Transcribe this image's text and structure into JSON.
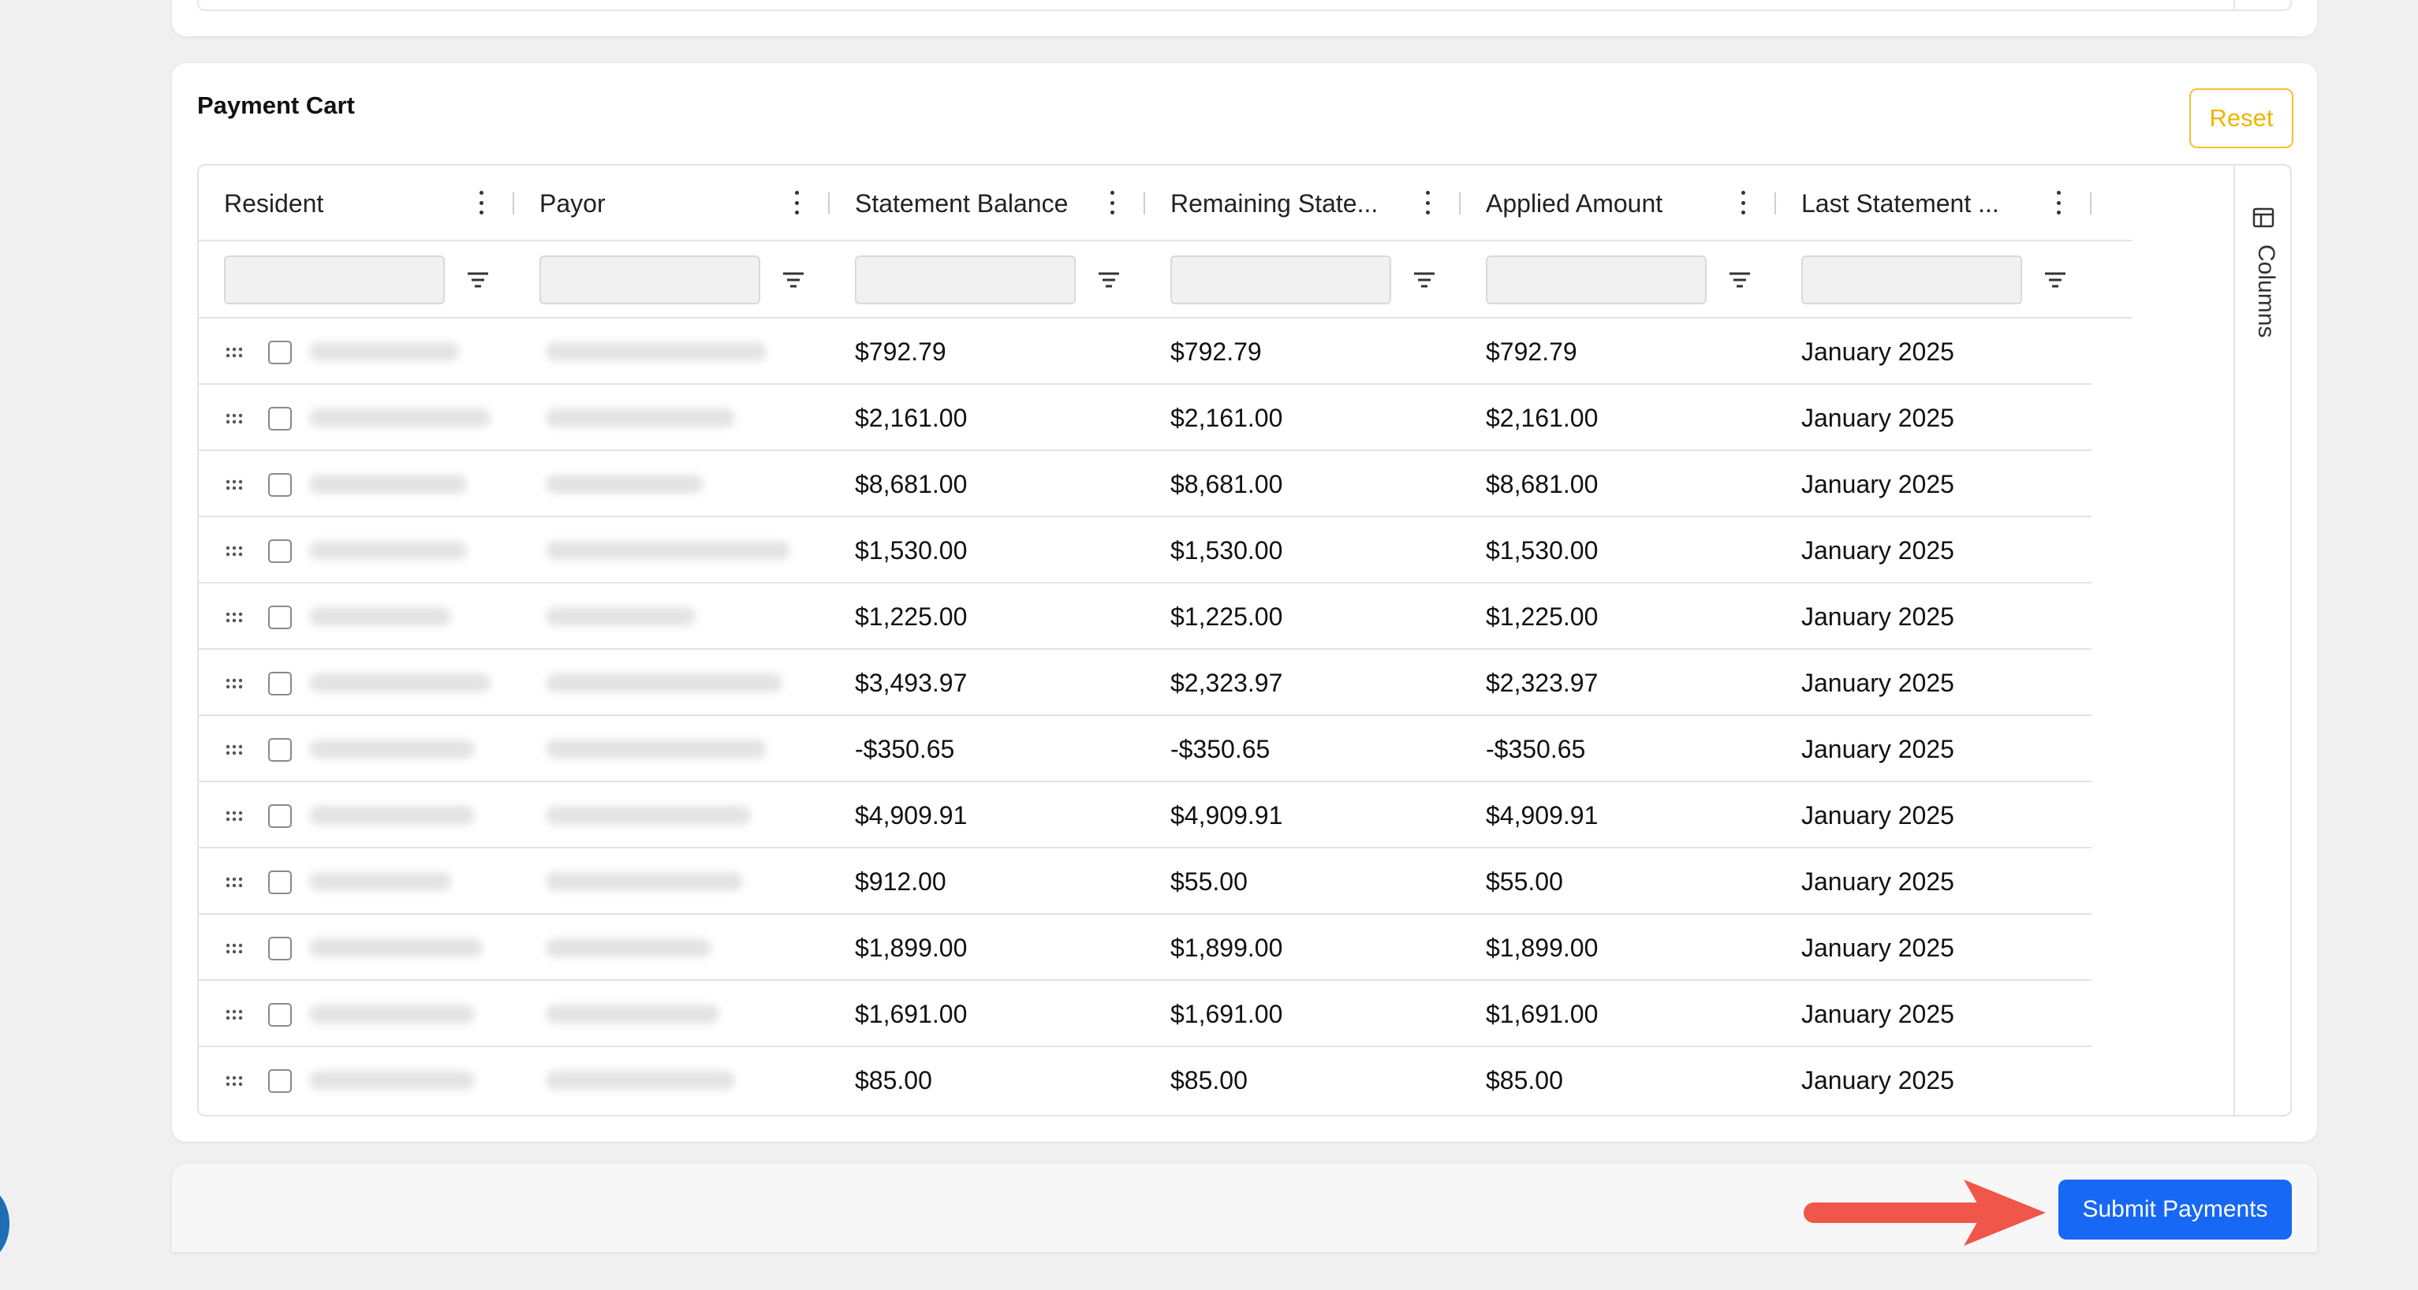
{
  "cart": {
    "title": "Payment Cart",
    "reset_label": "Reset",
    "columns_panel_label": "Columns"
  },
  "columns": [
    {
      "label": "Resident"
    },
    {
      "label": "Payor"
    },
    {
      "label": "Statement Balance"
    },
    {
      "label": "Remaining State..."
    },
    {
      "label": "Applied Amount"
    },
    {
      "label": "Last Statement ..."
    }
  ],
  "rows": [
    {
      "statement_balance": "$792.79",
      "remaining": "$792.79",
      "applied": "$792.79",
      "last_statement": "January 2025"
    },
    {
      "statement_balance": "$2,161.00",
      "remaining": "$2,161.00",
      "applied": "$2,161.00",
      "last_statement": "January 2025"
    },
    {
      "statement_balance": "$8,681.00",
      "remaining": "$8,681.00",
      "applied": "$8,681.00",
      "last_statement": "January 2025"
    },
    {
      "statement_balance": "$1,530.00",
      "remaining": "$1,530.00",
      "applied": "$1,530.00",
      "last_statement": "January 2025"
    },
    {
      "statement_balance": "$1,225.00",
      "remaining": "$1,225.00",
      "applied": "$1,225.00",
      "last_statement": "January 2025"
    },
    {
      "statement_balance": "$3,493.97",
      "remaining": "$2,323.97",
      "applied": "$2,323.97",
      "last_statement": "January 2025"
    },
    {
      "statement_balance": "-$350.65",
      "remaining": "-$350.65",
      "applied": "-$350.65",
      "last_statement": "January 2025"
    },
    {
      "statement_balance": "$4,909.91",
      "remaining": "$4,909.91",
      "applied": "$4,909.91",
      "last_statement": "January 2025"
    },
    {
      "statement_balance": "$912.00",
      "remaining": "$55.00",
      "applied": "$55.00",
      "last_statement": "January 2025"
    },
    {
      "statement_balance": "$1,899.00",
      "remaining": "$1,899.00",
      "applied": "$1,899.00",
      "last_statement": "January 2025"
    },
    {
      "statement_balance": "$1,691.00",
      "remaining": "$1,691.00",
      "applied": "$1,691.00",
      "last_statement": "January 2025"
    },
    {
      "statement_balance": "$85.00",
      "remaining": "$85.00",
      "applied": "$85.00",
      "last_statement": "January 2025"
    }
  ],
  "footer": {
    "submit_label": "Submit Payments"
  },
  "colors": {
    "accent": "#1668f5",
    "reset": "#f0b400",
    "arrow": "#f0564a"
  },
  "icons": {
    "column_menu": "vertical-dots-icon",
    "filter": "filter-icon",
    "drag": "drag-handle-icon",
    "columns": "columns-icon",
    "annotation": "arrow-right-icon"
  }
}
